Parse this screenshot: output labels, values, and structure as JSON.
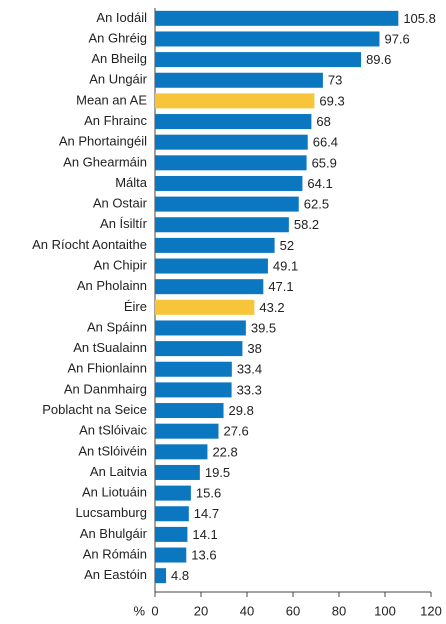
{
  "chart_data": {
    "type": "bar",
    "orientation": "horizontal",
    "categories": [
      "An Iodáil",
      "An Ghréig",
      "An Bheilg",
      "An Ungáir",
      "Mean an AE",
      "An Fhrainc",
      "An Phortaingéil",
      "An Ghearmáin",
      "Málta",
      "An Ostair",
      "An Ísiltír",
      "An Ríocht Aontaithe",
      "An Chipir",
      "An Pholainn",
      "Éire",
      "An Spáinn",
      "An tSualainn",
      "An Fhionlainn",
      "An Danmhairg",
      "Poblacht na Seice",
      "An tSlóivaic",
      "An tSlóivéin",
      "An Laitvia",
      "An Liotuáin",
      "Lucsamburg",
      "An Bhulgáir",
      "An Rómáin",
      "An Eastóin"
    ],
    "values": [
      105.8,
      97.6,
      89.6,
      73,
      69.3,
      68,
      66.4,
      65.9,
      64.1,
      62.5,
      58.2,
      52,
      49.1,
      47.1,
      43.2,
      39.5,
      38,
      33.4,
      33.3,
      29.8,
      27.6,
      22.8,
      19.5,
      15.6,
      14.7,
      14.1,
      13.6,
      4.8
    ],
    "colors": [
      "#0a77c0",
      "#0a77c0",
      "#0a77c0",
      "#0a77c0",
      "#f8c43a",
      "#0a77c0",
      "#0a77c0",
      "#0a77c0",
      "#0a77c0",
      "#0a77c0",
      "#0a77c0",
      "#0a77c0",
      "#0a77c0",
      "#0a77c0",
      "#f8c43a",
      "#0a77c0",
      "#0a77c0",
      "#0a77c0",
      "#0a77c0",
      "#0a77c0",
      "#0a77c0",
      "#0a77c0",
      "#0a77c0",
      "#0a77c0",
      "#0a77c0",
      "#0a77c0",
      "#0a77c0",
      "#0a77c0"
    ],
    "xlabel": "%",
    "xlim": [
      0,
      120
    ],
    "xticks": [
      0,
      20,
      40,
      60,
      80,
      100,
      120
    ]
  }
}
